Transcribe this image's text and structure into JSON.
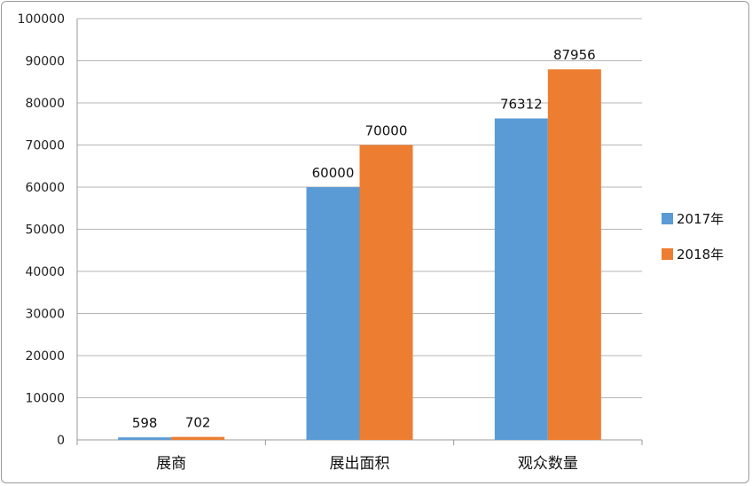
{
  "chart_data": {
    "type": "bar",
    "categories": [
      "展商",
      "展出面积",
      "观众数量"
    ],
    "series": [
      {
        "name": "2017年",
        "values": [
          598,
          60000,
          76312
        ],
        "color": "#5b9bd5"
      },
      {
        "name": "2018年",
        "values": [
          702,
          70000,
          87956
        ],
        "color": "#ed7d31"
      }
    ],
    "ylim": [
      0,
      100000
    ],
    "yticks": [
      "0",
      "10000",
      "20000",
      "30000",
      "40000",
      "50000",
      "60000",
      "70000",
      "80000",
      "90000",
      "100000"
    ],
    "grid": true,
    "legend_position": "right",
    "data_labels": true
  }
}
